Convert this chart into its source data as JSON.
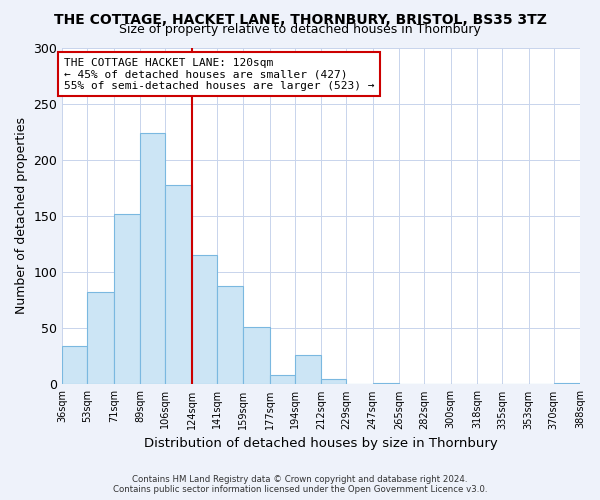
{
  "title": "THE COTTAGE, HACKET LANE, THORNBURY, BRISTOL, BS35 3TZ",
  "subtitle": "Size of property relative to detached houses in Thornbury",
  "xlabel": "Distribution of detached houses by size in Thornbury",
  "ylabel": "Number of detached properties",
  "bar_color": "#cce5f5",
  "bar_edge_color": "#7ab8e0",
  "bin_edges": [
    36,
    53,
    71,
    89,
    106,
    124,
    141,
    159,
    177,
    194,
    212,
    229,
    247,
    265,
    282,
    300,
    318,
    335,
    353,
    370,
    388
  ],
  "bin_labels": [
    "36sqm",
    "53sqm",
    "71sqm",
    "89sqm",
    "106sqm",
    "124sqm",
    "141sqm",
    "159sqm",
    "177sqm",
    "194sqm",
    "212sqm",
    "229sqm",
    "247sqm",
    "265sqm",
    "282sqm",
    "300sqm",
    "318sqm",
    "335sqm",
    "353sqm",
    "370sqm",
    "388sqm"
  ],
  "counts": [
    34,
    82,
    152,
    224,
    178,
    115,
    88,
    51,
    8,
    26,
    5,
    0,
    1,
    0,
    0,
    0,
    0,
    0,
    0,
    1
  ],
  "ylim": [
    0,
    300
  ],
  "yticks": [
    0,
    50,
    100,
    150,
    200,
    250,
    300
  ],
  "vline_x": 124,
  "vline_color": "#cc0000",
  "annotation_title": "THE COTTAGE HACKET LANE: 120sqm",
  "annotation_line1": "← 45% of detached houses are smaller (427)",
  "annotation_line2": "55% of semi-detached houses are larger (523) →",
  "annotation_box_color": "#ffffff",
  "annotation_box_edge": "#cc0000",
  "footnote1": "Contains HM Land Registry data © Crown copyright and database right 2024.",
  "footnote2": "Contains public sector information licensed under the Open Government Licence v3.0.",
  "background_color": "#eef2fa",
  "plot_background": "#ffffff",
  "grid_color": "#c8d4ec"
}
